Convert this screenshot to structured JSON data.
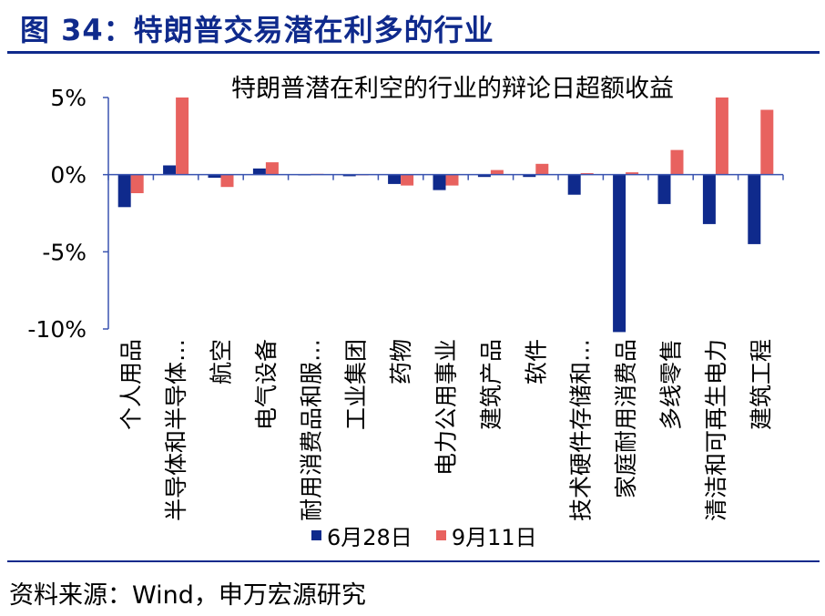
{
  "figure_title": "图 34：特朗普交易潜在利多的行业",
  "source": "资料来源：Wind，申万宏源研究",
  "colors": {
    "accent": "#0f2a8c",
    "series1": "#0f2a8c",
    "series2": "#e8625f"
  },
  "chart_data": {
    "type": "bar",
    "title": "特朗普潜在利空的行业的辩论日超额收益",
    "xlabel": "",
    "ylabel": "",
    "ylim": [
      -10,
      5
    ],
    "yticks": [
      5,
      0,
      -5,
      -10
    ],
    "ytick_labels": [
      "5%",
      "0%",
      "-5%",
      "-10%"
    ],
    "categories": [
      "个人用品",
      "半导体和半导体…",
      "航空",
      "电气设备",
      "耐用消费品和服…",
      "工业集团",
      "药物",
      "电力公用事业",
      "建筑产品",
      "软件",
      "技术硬件存储和…",
      "家庭耐用消费品",
      "多线零售",
      "清洁和可再生电力",
      "建筑工程"
    ],
    "series": [
      {
        "name": "6月28日",
        "color": "#0f2a8c",
        "values": [
          -2.1,
          0.6,
          -0.2,
          0.4,
          0.0,
          -0.1,
          -0.6,
          -1.0,
          -0.15,
          -0.15,
          -1.3,
          -10.2,
          -1.9,
          -3.2,
          -4.5
        ]
      },
      {
        "name": "9月11日",
        "color": "#e8625f",
        "values": [
          -1.2,
          5.0,
          -0.8,
          0.8,
          0.05,
          0.0,
          -0.7,
          -0.7,
          0.3,
          0.7,
          0.1,
          0.15,
          1.6,
          5.0,
          4.2
        ]
      }
    ],
    "legend_position": "bottom",
    "grid": false
  }
}
